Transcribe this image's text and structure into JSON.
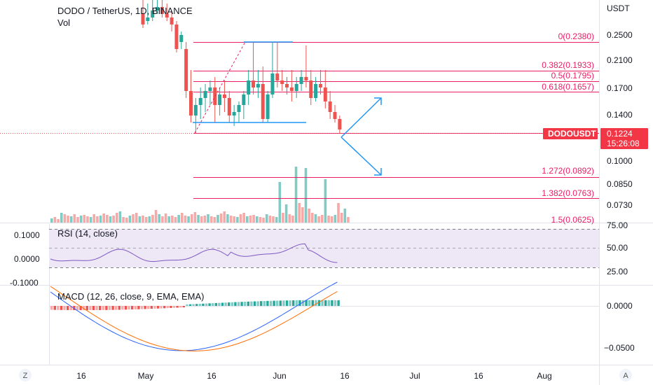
{
  "header": {
    "title": "DODO / TetherUS, 1D, BINANCE",
    "volume_label": "Vol",
    "currency": "USDT"
  },
  "price_axis": {
    "ticks": [
      "0.2500",
      "0.2100",
      "0.1700",
      "0.1400",
      "0.1000",
      "0.0850",
      "0.0730"
    ],
    "current_symbol": "DODOUSDT",
    "current_price": "0.1224",
    "countdown": "15:26:08"
  },
  "fib_levels": [
    {
      "label": "0(0.2380)"
    },
    {
      "label": "0.382(0.1933)"
    },
    {
      "label": "0.5(0.1795)"
    },
    {
      "label": "0.618(0.1657)"
    },
    {
      "label": "1.272(0.0892)"
    },
    {
      "label": "1.382(0.0763)"
    },
    {
      "label": "1.5(0.0625)"
    }
  ],
  "rsi": {
    "title": "RSI (14, close)",
    "ticks": [
      "75.00",
      "50.00",
      "25.00"
    ],
    "left_ticks": [
      "0.1000",
      "0.0000",
      "-0.1000"
    ]
  },
  "macd": {
    "title": "MACD (12, 26, close, 9, EMA, EMA)",
    "ticks": [
      "0.0000",
      "−0.0500"
    ]
  },
  "time_axis": {
    "labels": [
      "16",
      "May",
      "16",
      "Jun",
      "16",
      "Jul",
      "16",
      "Aug"
    ]
  },
  "corner_buttons": {
    "left": "Z",
    "right": "A"
  },
  "colors": {
    "up": "#26a69a",
    "up_light": "#80cbc4",
    "down": "#ef5350",
    "down_light": "#f7a9a7",
    "fib": "#e91e63",
    "support": "#2196f3",
    "rsi_band": "#ede7f6",
    "price_tag": "#f23645"
  }
}
